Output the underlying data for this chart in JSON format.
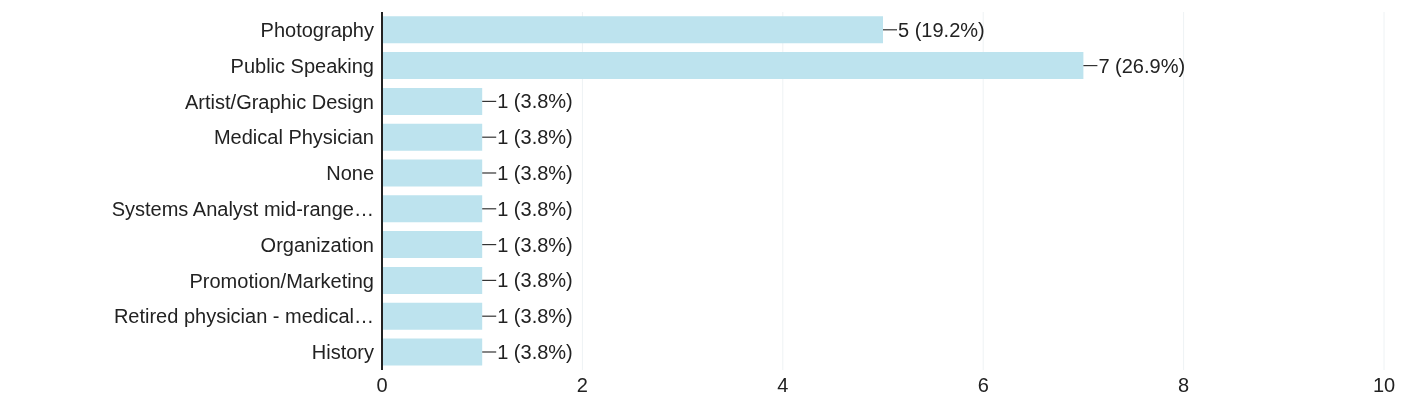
{
  "chart_data": {
    "type": "bar",
    "orientation": "horizontal",
    "categories": [
      "Photography",
      "Public Speaking",
      "Artist/Graphic Design",
      "Medical Physician",
      "None",
      "Systems Analyst mid-range…",
      "Organization",
      "Promotion/Marketing",
      "Retired physician - medical…",
      "History"
    ],
    "values": [
      5,
      7,
      1,
      1,
      1,
      1,
      1,
      1,
      1,
      1
    ],
    "value_labels": [
      "5 (19.2%)",
      "7 (26.9%)",
      "1 (3.8%)",
      "1 (3.8%)",
      "1 (3.8%)",
      "1 (3.8%)",
      "1 (3.8%)",
      "1 (3.8%)",
      "1 (3.8%)",
      "1 (3.8%)"
    ],
    "color": "#bde3ee",
    "xlim": [
      0,
      10
    ],
    "xticks": [
      0,
      2,
      4,
      6,
      8,
      10
    ],
    "grid": "x"
  }
}
